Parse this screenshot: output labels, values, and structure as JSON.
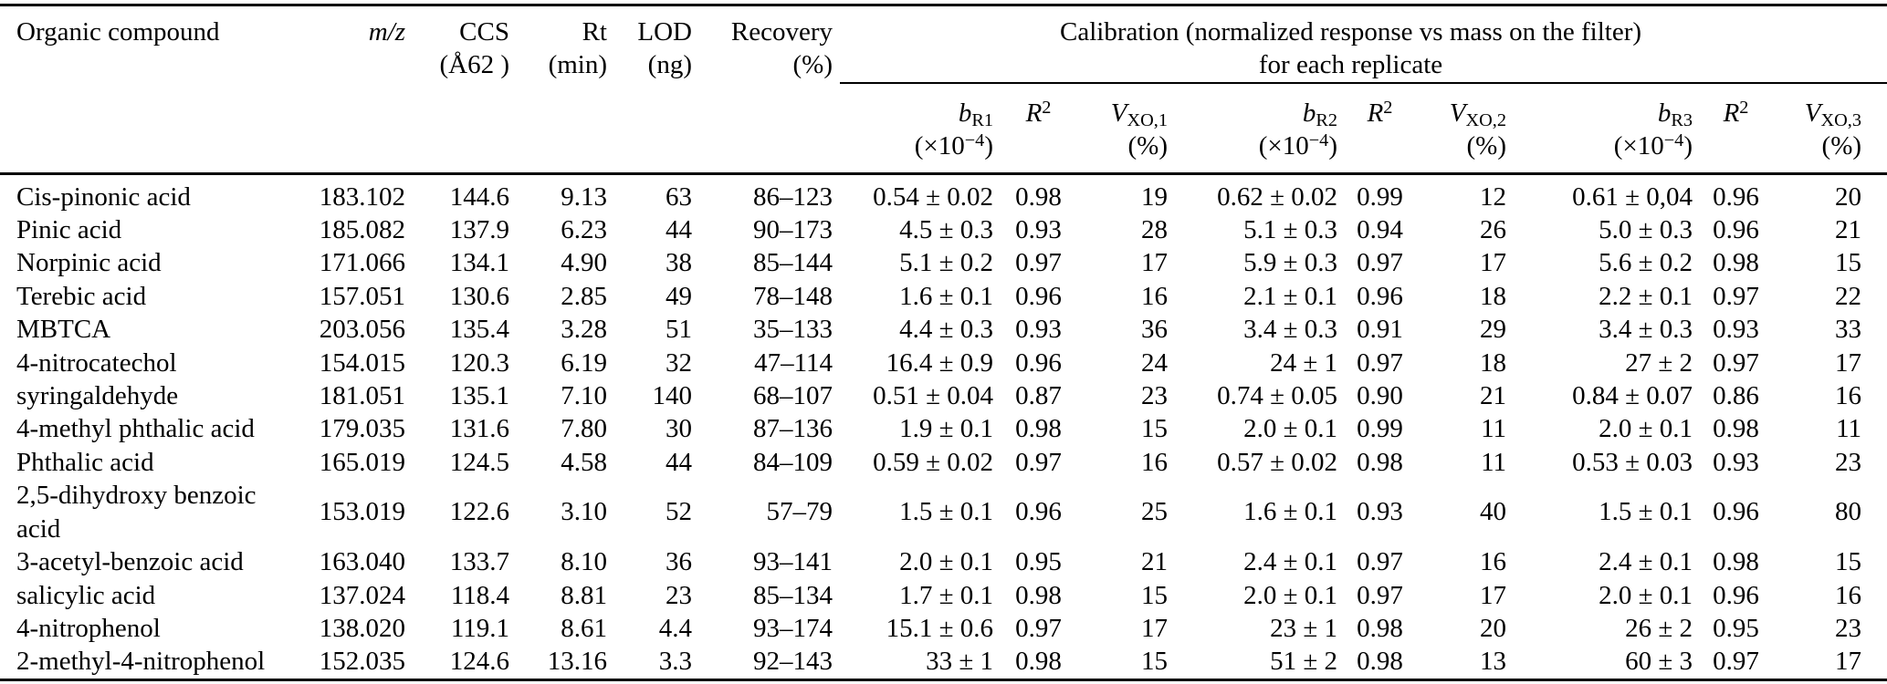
{
  "colors": {
    "background": "#ffffff",
    "text": "#000000",
    "rules": "#000000"
  },
  "table": {
    "header": {
      "compound": "Organic compound",
      "mz": "m/z",
      "ccs_line1": "CCS",
      "ccs_line2": "(Å62 )",
      "rt_line1": "Rt",
      "rt_line2": "(min)",
      "lod_line1": "LOD",
      "lod_line2": "(ng)",
      "recovery_line1": "Recovery",
      "recovery_line2": "(%)",
      "calibration_line1": "Calibration (normalized response vs mass on the filter)",
      "calibration_line2": "for each replicate",
      "b_symbol": "b",
      "r_symbol": "R",
      "r_sup": "2",
      "v_symbol": "V",
      "unit_b_pre": "(×10",
      "unit_b_sup": "−4",
      "unit_b_close": ")",
      "unit_pct": "(%)",
      "replicates": [
        {
          "b_sub": "R1",
          "v_sub": "XO,1"
        },
        {
          "b_sub": "R2",
          "v_sub": "XO,2"
        },
        {
          "b_sub": "R3",
          "v_sub": "XO,3"
        }
      ]
    },
    "row_fields": [
      "compound",
      "mz",
      "ccs",
      "rt",
      "lod",
      "recovery",
      "b_r1",
      "r2_1",
      "v_1",
      "b_r2",
      "r2_2",
      "v_2",
      "b_r3",
      "r2_3",
      "v_3"
    ],
    "rows": [
      {
        "compound": "Cis-pinonic acid",
        "mz": "183.102",
        "ccs": "144.6",
        "rt": "9.13",
        "lod": "63",
        "recovery": "86–123",
        "b_r1": "0.54 ± 0.02",
        "r2_1": "0.98",
        "v_1": "19",
        "b_r2": "0.62 ± 0.02",
        "r2_2": "0.99",
        "v_2": "12",
        "b_r3": "0.61 ± 0,04",
        "r2_3": "0.96",
        "v_3": "20"
      },
      {
        "compound": "Pinic acid",
        "mz": "185.082",
        "ccs": "137.9",
        "rt": "6.23",
        "lod": "44",
        "recovery": "90–173",
        "b_r1": "4.5 ± 0.3",
        "r2_1": "0.93",
        "v_1": "28",
        "b_r2": "5.1 ± 0.3",
        "r2_2": "0.94",
        "v_2": "26",
        "b_r3": "5.0 ± 0.3",
        "r2_3": "0.96",
        "v_3": "21"
      },
      {
        "compound": "Norpinic acid",
        "mz": "171.066",
        "ccs": "134.1",
        "rt": "4.90",
        "lod": "38",
        "recovery": "85–144",
        "b_r1": "5.1 ± 0.2",
        "r2_1": "0.97",
        "v_1": "17",
        "b_r2": "5.9 ± 0.3",
        "r2_2": "0.97",
        "v_2": "17",
        "b_r3": "5.6 ± 0.2",
        "r2_3": "0.98",
        "v_3": "15"
      },
      {
        "compound": "Terebic acid",
        "mz": "157.051",
        "ccs": "130.6",
        "rt": "2.85",
        "lod": "49",
        "recovery": "78–148",
        "b_r1": "1.6 ± 0.1",
        "r2_1": "0.96",
        "v_1": "16",
        "b_r2": "2.1 ± 0.1",
        "r2_2": "0.96",
        "v_2": "18",
        "b_r3": "2.2 ± 0.1",
        "r2_3": "0.97",
        "v_3": "22"
      },
      {
        "compound": "MBTCA",
        "mz": "203.056",
        "ccs": "135.4",
        "rt": "3.28",
        "lod": "51",
        "recovery": "35–133",
        "b_r1": "4.4 ± 0.3",
        "r2_1": "0.93",
        "v_1": "36",
        "b_r2": "3.4 ± 0.3",
        "r2_2": "0.91",
        "v_2": "29",
        "b_r3": "3.4 ± 0.3",
        "r2_3": "0.93",
        "v_3": "33"
      },
      {
        "compound": "4-nitrocatechol",
        "mz": "154.015",
        "ccs": "120.3",
        "rt": "6.19",
        "lod": "32",
        "recovery": "47–114",
        "b_r1": "16.4 ± 0.9",
        "r2_1": "0.96",
        "v_1": "24",
        "b_r2": "24 ± 1",
        "r2_2": "0.97",
        "v_2": "18",
        "b_r3": "27 ± 2",
        "r2_3": "0.97",
        "v_3": "17"
      },
      {
        "compound": "syringaldehyde",
        "mz": "181.051",
        "ccs": "135.1",
        "rt": "7.10",
        "lod": "140",
        "recovery": "68–107",
        "b_r1": "0.51 ± 0.04",
        "r2_1": "0.87",
        "v_1": "23",
        "b_r2": "0.74 ± 0.05",
        "r2_2": "0.90",
        "v_2": "21",
        "b_r3": "0.84 ± 0.07",
        "r2_3": "0.86",
        "v_3": "16"
      },
      {
        "compound": "4-methyl phthalic acid",
        "mz": "179.035",
        "ccs": "131.6",
        "rt": "7.80",
        "lod": "30",
        "recovery": "87–136",
        "b_r1": "1.9 ± 0.1",
        "r2_1": "0.98",
        "v_1": "15",
        "b_r2": "2.0 ± 0.1",
        "r2_2": "0.99",
        "v_2": "11",
        "b_r3": "2.0 ± 0.1",
        "r2_3": "0.98",
        "v_3": "11"
      },
      {
        "compound": "Phthalic acid",
        "mz": "165.019",
        "ccs": "124.5",
        "rt": "4.58",
        "lod": "44",
        "recovery": "84–109",
        "b_r1": "0.59 ± 0.02",
        "r2_1": "0.97",
        "v_1": "16",
        "b_r2": "0.57 ± 0.02",
        "r2_2": "0.98",
        "v_2": "11",
        "b_r3": "0.53 ± 0.03",
        "r2_3": "0.93",
        "v_3": "23"
      },
      {
        "compound": "2,5-dihydroxy benzoic\nacid",
        "mz": "153.019",
        "ccs": "122.6",
        "rt": "3.10",
        "lod": "52",
        "recovery": "57–79",
        "b_r1": "1.5 ± 0.1",
        "r2_1": "0.96",
        "v_1": "25",
        "b_r2": "1.6 ± 0.1",
        "r2_2": "0.93",
        "v_2": "40",
        "b_r3": "1.5 ± 0.1",
        "r2_3": "0.96",
        "v_3": "80"
      },
      {
        "compound": "3-acetyl-benzoic acid",
        "mz": "163.040",
        "ccs": "133.7",
        "rt": "8.10",
        "lod": "36",
        "recovery": "93–141",
        "b_r1": "2.0 ± 0.1",
        "r2_1": "0.95",
        "v_1": "21",
        "b_r2": "2.4 ± 0.1",
        "r2_2": "0.97",
        "v_2": "16",
        "b_r3": "2.4 ± 0.1",
        "r2_3": "0.98",
        "v_3": "15"
      },
      {
        "compound": "salicylic acid",
        "mz": "137.024",
        "ccs": "118.4",
        "rt": "8.81",
        "lod": "23",
        "recovery": "85–134",
        "b_r1": "1.7 ± 0.1",
        "r2_1": "0.98",
        "v_1": "15",
        "b_r2": "2.0 ± 0.1",
        "r2_2": "0.97",
        "v_2": "17",
        "b_r3": "2.0 ± 0.1",
        "r2_3": "0.96",
        "v_3": "16"
      },
      {
        "compound": "4-nitrophenol",
        "mz": "138.020",
        "ccs": "119.1",
        "rt": "8.61",
        "lod": "4.4",
        "recovery": "93–174",
        "b_r1": "15.1 ± 0.6",
        "r2_1": "0.97",
        "v_1": "17",
        "b_r2": "23 ± 1",
        "r2_2": "0.98",
        "v_2": "20",
        "b_r3": "26 ± 2",
        "r2_3": "0.95",
        "v_3": "23"
      },
      {
        "compound": "2-methyl-4-nitrophenol",
        "mz": "152.035",
        "ccs": "124.6",
        "rt": "13.16",
        "lod": "3.3",
        "recovery": "92–143",
        "b_r1": "33 ± 1",
        "r2_1": "0.98",
        "v_1": "15",
        "b_r2": "51 ± 2",
        "r2_2": "0.98",
        "v_2": "13",
        "b_r3": "60 ± 3",
        "r2_3": "0.97",
        "v_3": "17"
      }
    ]
  }
}
